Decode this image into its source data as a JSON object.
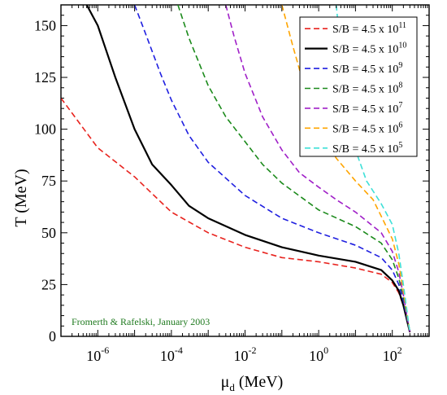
{
  "chart_data": {
    "type": "line",
    "xlabel_main": "μ",
    "xlabel_sub": "d",
    "xlabel_unit": " (MeV)",
    "ylabel": "T (MeV)",
    "x_scale": "log",
    "xlim": [
      1e-07,
      1000
    ],
    "ylim": [
      0,
      160
    ],
    "x_ticks": [
      {
        "value": 1e-06,
        "base": "10",
        "exp": "-6"
      },
      {
        "value": 0.0001,
        "base": "10",
        "exp": "-4"
      },
      {
        "value": 0.01,
        "base": "10",
        "exp": "-2"
      },
      {
        "value": 1,
        "base": "10",
        "exp": "0"
      },
      {
        "value": 100,
        "base": "10",
        "exp": "2"
      }
    ],
    "y_ticks": [
      0,
      25,
      50,
      75,
      100,
      125,
      150
    ],
    "grid": false,
    "legend_position": "top-right",
    "annotation": "Fromerth & Rafelski, January 2003",
    "annotation_color": "#1f7a1f",
    "series": [
      {
        "name_base": "S/B = 4.5 x 10",
        "name_exp": "11",
        "color": "#e8231e",
        "dash": true,
        "x": [
          1e-07,
          1e-06,
          1e-05,
          0.0001,
          0.001,
          0.01,
          0.1,
          1,
          10,
          50,
          100,
          150,
          200,
          300
        ],
        "y": [
          115,
          91,
          77,
          60,
          50,
          43,
          38,
          36,
          33,
          30,
          26,
          21,
          15,
          2
        ]
      },
      {
        "name_base": "S/B = 4.5 x 10",
        "name_exp": "10",
        "color": "#000000",
        "dash": false,
        "x": [
          5e-07,
          1e-06,
          3e-06,
          1e-05,
          3e-05,
          0.0001,
          0.0003,
          0.001,
          0.01,
          0.1,
          1,
          10,
          50,
          100,
          150,
          200,
          300
        ],
        "y": [
          160,
          150,
          125,
          100,
          83,
          73,
          63,
          57,
          49,
          43,
          39,
          36,
          32,
          27,
          22,
          15,
          2
        ]
      },
      {
        "name_base": "S/B = 4.5 x 10",
        "name_exp": "9",
        "color": "#1f1fe0",
        "dash": true,
        "x": [
          1e-05,
          2e-05,
          5e-05,
          0.0001,
          0.0003,
          0.001,
          0.01,
          0.1,
          1,
          10,
          50,
          100,
          150,
          200,
          300
        ],
        "y": [
          160,
          146,
          127,
          114,
          97,
          84,
          68,
          57,
          50,
          44,
          38,
          32,
          25,
          17,
          2
        ]
      },
      {
        "name_base": "S/B = 4.5 x 10",
        "name_exp": "8",
        "color": "#1b8a1b",
        "dash": true,
        "x": [
          0.00015,
          0.0003,
          0.001,
          0.003,
          0.01,
          0.03,
          0.1,
          1,
          10,
          50,
          100,
          150,
          200,
          300
        ],
        "y": [
          160,
          144,
          121,
          106,
          94,
          83,
          74,
          61,
          53,
          45,
          37,
          28,
          19,
          2
        ]
      },
      {
        "name_base": "S/B = 4.5 x 10",
        "name_exp": "7",
        "color": "#a020c8",
        "dash": true,
        "x": [
          0.003,
          0.005,
          0.01,
          0.03,
          0.1,
          0.3,
          1,
          3,
          10,
          50,
          100,
          150,
          200,
          300
        ],
        "y": [
          160,
          145,
          127,
          106,
          90,
          79,
          72,
          66,
          60,
          50,
          41,
          31,
          20,
          2
        ]
      },
      {
        "name_base": "S/B = 4.5 x 10",
        "name_exp": "6",
        "color": "#ffa500",
        "dash": true,
        "x": [
          0.1,
          0.2,
          0.5,
          1,
          3,
          10,
          30,
          50,
          100,
          150,
          200,
          300
        ],
        "y": [
          160,
          140,
          115,
          101,
          86,
          75,
          66,
          58,
          47,
          35,
          22,
          2
        ]
      },
      {
        "name_base": "S/B = 4.5 x 10",
        "name_exp": "5",
        "color": "#3ee0d8",
        "dash": true,
        "x": [
          3,
          5,
          10,
          20,
          50,
          100,
          150,
          200,
          300
        ],
        "y": [
          160,
          120,
          90,
          75,
          64,
          54,
          40,
          25,
          2
        ]
      }
    ]
  }
}
